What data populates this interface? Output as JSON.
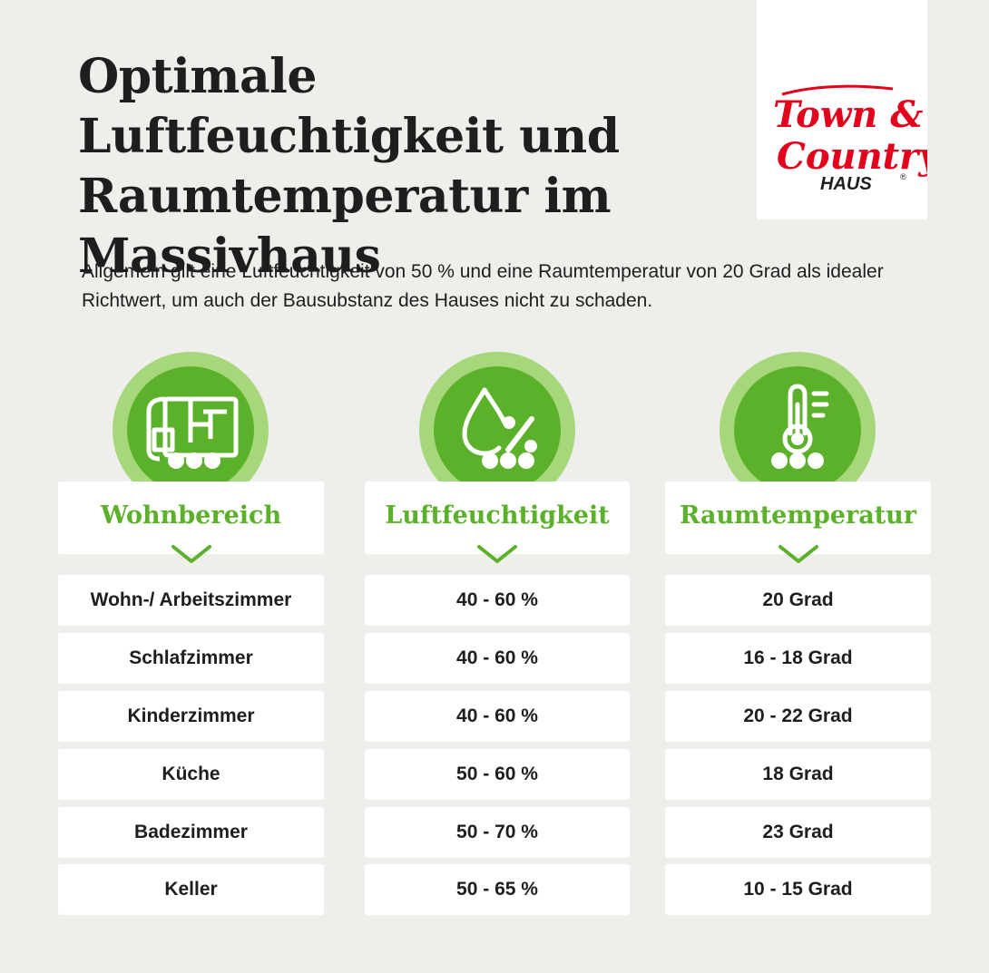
{
  "header": {
    "title": "Optimale Luftfeuchtigkeit und Raumtemperatur im Massivhaus",
    "intro": "Allgemein gilt eine Luftfeuchtigkeit von 50 % und eine Raumtemperatur von 20 Grad als idealer Richtwert, um auch der Bausubstanz des Hauses nicht zu schaden."
  },
  "logo": {
    "line1": "Town &",
    "line2": "Country",
    "line3": "HAUS",
    "registered": "®",
    "color": "#e2001a"
  },
  "colors": {
    "background": "#eeeeea",
    "green": "#5bb12a",
    "light_green": "#a6d77a",
    "text": "#1e1e1e"
  },
  "table": {
    "columns": [
      {
        "label": "Wohnbereich",
        "icon": "floor-plan-icon"
      },
      {
        "label": "Luftfeuchtigkeit",
        "icon": "humidity-drop-icon"
      },
      {
        "label": "Raumtemperatur",
        "icon": "thermometer-icon"
      }
    ],
    "rows": [
      {
        "room": "Wohn-/ Arbeitszimmer",
        "humidity": "40 - 60 %",
        "temperature": "20 Grad"
      },
      {
        "room": "Schlafzimmer",
        "humidity": "40 - 60 %",
        "temperature": "16 - 18 Grad"
      },
      {
        "room": "Kinderzimmer",
        "humidity": "40 - 60 %",
        "temperature": "20 - 22 Grad"
      },
      {
        "room": "Küche",
        "humidity": "50 - 60 %",
        "temperature": "18 Grad"
      },
      {
        "room": "Badezimmer",
        "humidity": "50 - 70 %",
        "temperature": "23 Grad"
      },
      {
        "room": "Keller",
        "humidity": "50 - 65 %",
        "temperature": "10 - 15 Grad"
      }
    ]
  }
}
